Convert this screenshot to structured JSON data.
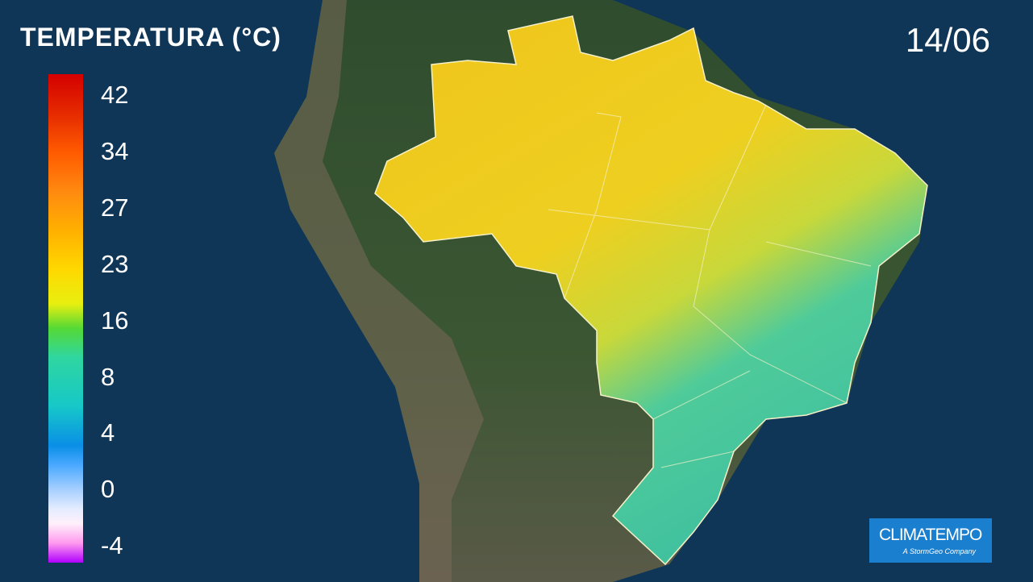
{
  "header": {
    "title": "TEMPERATURA (°C)",
    "date": "14/06"
  },
  "legend": {
    "labels": [
      "42",
      "34",
      "27",
      "23",
      "16",
      "8",
      "4",
      "0",
      "-4"
    ]
  },
  "logo": {
    "name": "CLIMATEMPO",
    "tagline": "A StormGeo Company"
  }
}
